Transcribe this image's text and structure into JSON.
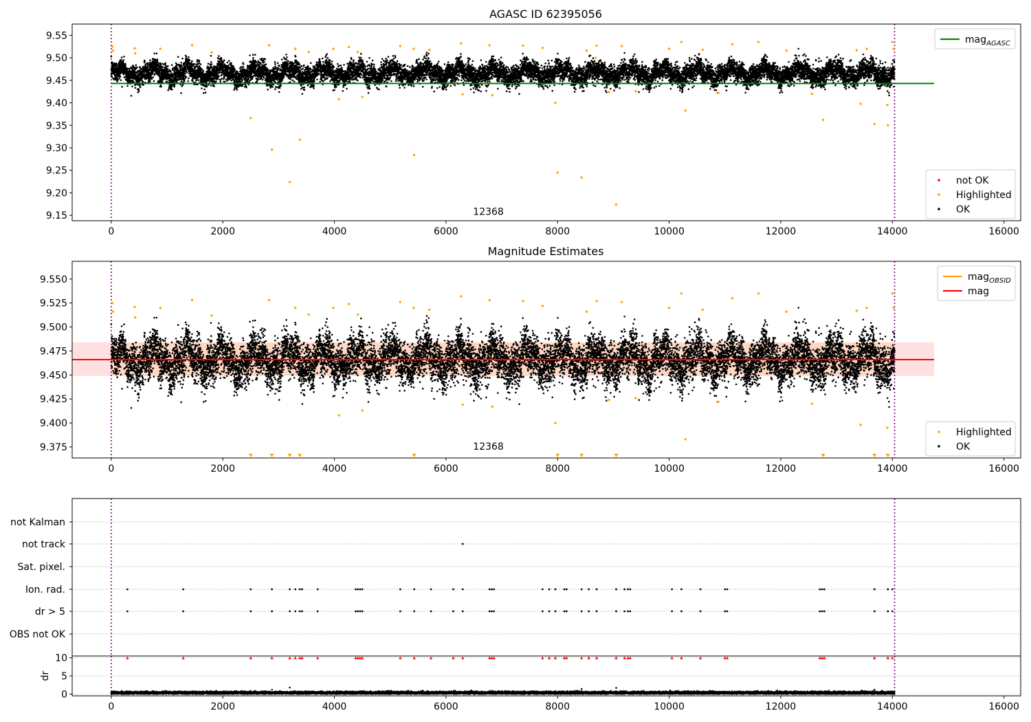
{
  "chart_data": [
    {
      "type": "scatter",
      "title": "AGASC ID 62395056",
      "xlim": [
        -700,
        16300
      ],
      "ylim": [
        9.138,
        9.575
      ],
      "x_ticks": [
        0,
        2000,
        4000,
        6000,
        8000,
        10000,
        12000,
        14000,
        16000
      ],
      "y_ticks": [
        9.15,
        9.2,
        9.25,
        9.3,
        9.35,
        9.4,
        9.45,
        9.5,
        9.55
      ],
      "y_tick_decimals": 2,
      "vlines": [
        0,
        14040
      ],
      "annotation": {
        "text": "12368",
        "x": 6760,
        "y": 9.151
      },
      "lines": [
        {
          "name": "mag_AGASC",
          "y": 9.443,
          "x0": 0,
          "x1": 14750,
          "color": "#008000"
        }
      ],
      "band": null,
      "dense_series": {
        "name": "OK",
        "color": "#000000",
        "n_points": 14040,
        "center": 9.466,
        "spread": 0.014,
        "wobble": 0.01
      },
      "series": [
        {
          "name": "not OK",
          "color": "#ff0000",
          "points": []
        },
        {
          "name": "Highlighted",
          "color": "#ffa500",
          "points": [
            [
              20,
              9.525
            ],
            [
              30,
              9.516
            ],
            [
              420,
              9.521
            ],
            [
              430,
              9.51
            ],
            [
              880,
              9.52
            ],
            [
              1450,
              9.528
            ],
            [
              1800,
              9.512
            ],
            [
              2500,
              9.366
            ],
            [
              2830,
              9.528
            ],
            [
              2880,
              9.296
            ],
            [
              3200,
              9.224
            ],
            [
              3300,
              9.52
            ],
            [
              3380,
              9.318
            ],
            [
              3540,
              9.513
            ],
            [
              3980,
              9.52
            ],
            [
              4080,
              9.408
            ],
            [
              4260,
              9.524
            ],
            [
              4420,
              9.513
            ],
            [
              4500,
              9.413
            ],
            [
              5180,
              9.526
            ],
            [
              5420,
              9.52
            ],
            [
              5430,
              9.284
            ],
            [
              5700,
              9.518
            ],
            [
              6270,
              9.532
            ],
            [
              6300,
              9.419
            ],
            [
              6780,
              9.528
            ],
            [
              6830,
              9.417
            ],
            [
              7380,
              9.527
            ],
            [
              7730,
              9.522
            ],
            [
              7960,
              9.4
            ],
            [
              8000,
              9.245
            ],
            [
              8430,
              9.234
            ],
            [
              8520,
              9.516
            ],
            [
              8700,
              9.527
            ],
            [
              8680,
              9.5
            ],
            [
              8920,
              9.424
            ],
            [
              9050,
              9.174
            ],
            [
              9150,
              9.526
            ],
            [
              9400,
              9.426
            ],
            [
              10000,
              9.52
            ],
            [
              10220,
              9.535
            ],
            [
              10290,
              9.383
            ],
            [
              10600,
              9.518
            ],
            [
              10880,
              9.422
            ],
            [
              11130,
              9.53
            ],
            [
              11600,
              9.535
            ],
            [
              12100,
              9.516
            ],
            [
              12560,
              9.42
            ],
            [
              12760,
              9.362
            ],
            [
              13360,
              9.517
            ],
            [
              13430,
              9.398
            ],
            [
              13540,
              9.52
            ],
            [
              13680,
              9.353
            ],
            [
              13910,
              9.395
            ],
            [
              13920,
              9.35
            ],
            [
              14000,
              9.535
            ],
            [
              14020,
              9.52
            ]
          ]
        }
      ],
      "legends": [
        {
          "position": "upper right",
          "entries": [
            {
              "label": "mag",
              "sub": "AGASC",
              "kind": "line",
              "color": "#008000"
            }
          ]
        },
        {
          "position": "lower right",
          "entries": [
            {
              "label": "not OK",
              "kind": "dot",
              "color": "#ff0000"
            },
            {
              "label": "Highlighted",
              "kind": "dot",
              "color": "#ffa500"
            },
            {
              "label": "OK",
              "kind": "dot",
              "color": "#000000"
            }
          ]
        }
      ]
    },
    {
      "type": "scatter",
      "title": "Magnitude Estimates",
      "xlim": [
        -700,
        16300
      ],
      "ylim": [
        9.3635,
        9.5685
      ],
      "x_ticks": [
        0,
        2000,
        4000,
        6000,
        8000,
        10000,
        12000,
        14000,
        16000
      ],
      "y_ticks": [
        9.375,
        9.4,
        9.425,
        9.45,
        9.475,
        9.5,
        9.525,
        9.55
      ],
      "y_tick_decimals": 3,
      "vlines": [
        0,
        14040
      ],
      "annotation": {
        "text": "12368",
        "x": 6760,
        "y": 9.372
      },
      "lines": [
        {
          "name": "mag",
          "y": 9.466,
          "x0": -700,
          "x1": 14750,
          "color": "#ff0000"
        }
      ],
      "band": {
        "y0": 9.449,
        "y1": 9.484,
        "x0": -700,
        "x1": 14750,
        "color": "#ff0000",
        "opacity": 0.12
      },
      "band2": {
        "y0": 9.449,
        "y1": 9.484,
        "x0": 0,
        "x1": 14040,
        "color": "#ffa500",
        "opacity": 0.12
      },
      "dense_series": {
        "name": "OK",
        "color": "#000000",
        "n_points": 14040,
        "center": 9.466,
        "spread": 0.014,
        "wobble": 0.01
      },
      "series": [
        {
          "name": "Highlighted",
          "color": "#ffa500",
          "points": [
            [
              20,
              9.525
            ],
            [
              30,
              9.516
            ],
            [
              420,
              9.521
            ],
            [
              430,
              9.51
            ],
            [
              880,
              9.52
            ],
            [
              1450,
              9.528
            ],
            [
              1800,
              9.512
            ],
            [
              2830,
              9.528
            ],
            [
              3300,
              9.52
            ],
            [
              3540,
              9.513
            ],
            [
              3980,
              9.52
            ],
            [
              4080,
              9.408
            ],
            [
              4260,
              9.524
            ],
            [
              4420,
              9.513
            ],
            [
              4500,
              9.413
            ],
            [
              5180,
              9.526
            ],
            [
              5420,
              9.52
            ],
            [
              5700,
              9.518
            ],
            [
              6270,
              9.532
            ],
            [
              6300,
              9.419
            ],
            [
              6780,
              9.528
            ],
            [
              6830,
              9.417
            ],
            [
              7380,
              9.527
            ],
            [
              7730,
              9.522
            ],
            [
              7960,
              9.4
            ],
            [
              8520,
              9.516
            ],
            [
              8700,
              9.527
            ],
            [
              8920,
              9.424
            ],
            [
              9150,
              9.526
            ],
            [
              9400,
              9.426
            ],
            [
              10000,
              9.52
            ],
            [
              10220,
              9.535
            ],
            [
              10290,
              9.383
            ],
            [
              10600,
              9.518
            ],
            [
              10880,
              9.422
            ],
            [
              11130,
              9.53
            ],
            [
              11600,
              9.535
            ],
            [
              12100,
              9.516
            ],
            [
              12560,
              9.42
            ],
            [
              13360,
              9.517
            ],
            [
              13430,
              9.398
            ],
            [
              13540,
              9.52
            ],
            [
              13910,
              9.395
            ],
            [
              14000,
              9.535
            ],
            [
              14020,
              9.52
            ]
          ]
        }
      ],
      "clipped_markers": {
        "color": "#ffa500",
        "x": [
          2500,
          2880,
          3200,
          3380,
          5430,
          8000,
          8430,
          9050,
          12760,
          13680,
          13920
        ]
      },
      "legends": [
        {
          "position": "upper right",
          "entries": [
            {
              "label": "mag",
              "sub": "OBSID",
              "kind": "line",
              "color": "#ffa500"
            },
            {
              "label": "mag",
              "kind": "line",
              "color": "#ff0000"
            }
          ]
        },
        {
          "position": "lower right",
          "entries": [
            {
              "label": "Highlighted",
              "kind": "dot",
              "color": "#ffa500"
            },
            {
              "label": "OK",
              "kind": "dot",
              "color": "#000000"
            }
          ]
        }
      ]
    },
    {
      "type": "scatter",
      "title": "",
      "xlim": [
        -700,
        16300
      ],
      "vlines": [
        0,
        14040
      ],
      "flag_rows": [
        "not Kalman",
        "not track",
        "Sat. pixel.",
        "Ion. rad.",
        "dr > 5",
        "OBS not OK"
      ],
      "flag_events": {
        "not Kalman": [],
        "not track": [
          6300
        ],
        "Sat. pixel.": [],
        "Ion. rad.": [
          290,
          1290,
          2500,
          2880,
          3200,
          3300,
          3380,
          3420,
          3700,
          4380,
          4420,
          4460,
          4500,
          5180,
          5430,
          5730,
          6130,
          6300,
          6780,
          6820,
          6860,
          7730,
          7850,
          7960,
          8120,
          8160,
          8430,
          8560,
          8700,
          9050,
          9200,
          9260,
          9300,
          10050,
          10220,
          10560,
          11000,
          11040,
          12700,
          12740,
          12780,
          13680,
          13920,
          14000
        ],
        "dr > 5": [
          290,
          1290,
          2500,
          2880,
          3200,
          3300,
          3380,
          3420,
          3700,
          4380,
          4420,
          4460,
          4500,
          5180,
          5430,
          5730,
          6130,
          6300,
          6780,
          6820,
          6860,
          7730,
          7850,
          7960,
          8120,
          8160,
          8430,
          8560,
          8700,
          9050,
          9200,
          9260,
          9300,
          10050,
          10220,
          10560,
          11000,
          11040,
          12700,
          12740,
          12780,
          13680,
          13920,
          14000
        ],
        "OBS not OK": []
      },
      "x_ticks": [
        0,
        2000,
        4000,
        6000,
        8000,
        10000,
        12000,
        14000,
        16000
      ]
    },
    {
      "type": "scatter",
      "title": "",
      "ylabel": "dr",
      "ylim": [
        -0.5,
        10.5
      ],
      "y_ticks": [
        0,
        5,
        10
      ],
      "xlim": [
        -700,
        16300
      ],
      "x_ticks": [
        0,
        2000,
        4000,
        6000,
        8000,
        10000,
        12000,
        14000,
        16000
      ],
      "vlines": [
        0,
        14040
      ],
      "dense_series": {
        "name": "dr",
        "color": "#000000",
        "n_points": 14040,
        "center": 0.35,
        "spread": 0.18,
        "wobble": 0.05
      },
      "outliers": [
        [
          3200,
          1.8
        ],
        [
          8430,
          1.4
        ],
        [
          9050,
          1.7
        ],
        [
          13680,
          1.2
        ]
      ],
      "clipped_markers": {
        "color": "#ff0000",
        "x": [
          290,
          1290,
          2500,
          2880,
          3200,
          3300,
          3380,
          3420,
          3700,
          4380,
          4420,
          4460,
          4500,
          5180,
          5430,
          5730,
          6130,
          6300,
          6780,
          6820,
          6860,
          7730,
          7850,
          7960,
          8120,
          8160,
          8430,
          8560,
          8700,
          9050,
          9200,
          9260,
          9300,
          10050,
          10220,
          10560,
          11000,
          11040,
          12700,
          12740,
          12780,
          13680,
          13920,
          14000
        ]
      }
    }
  ]
}
